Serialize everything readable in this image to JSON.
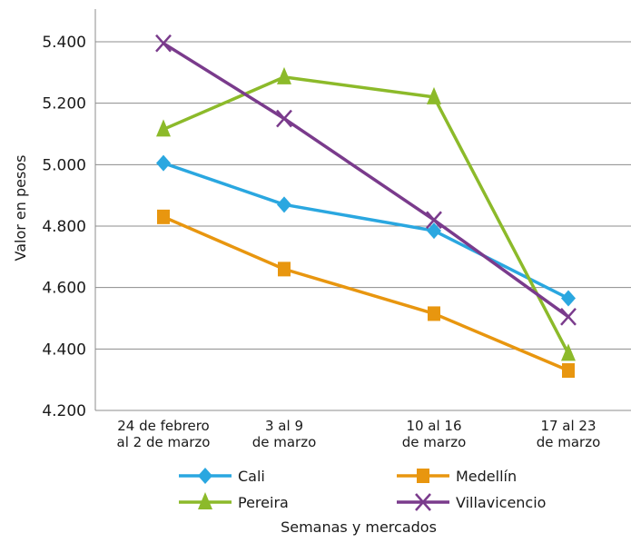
{
  "chart_data": {
    "type": "line",
    "categories": [
      [
        "24 de febrero",
        "al 2 de marzo"
      ],
      [
        "3 al 9",
        "de marzo"
      ],
      [
        "10 al 16",
        "de marzo"
      ],
      [
        "17 al 23",
        "de marzo"
      ]
    ],
    "ylabel": "Valor en pesos",
    "xlabel": "Semanas y mercados",
    "ylim": [
      4200,
      5400
    ],
    "yticks": [
      4200,
      4400,
      4600,
      4800,
      5000,
      5200,
      5400
    ],
    "ytick_labels": [
      "4.200",
      "4.400",
      "4.600",
      "4.800",
      "5.000",
      "5.200",
      "5.400"
    ],
    "grid": true,
    "legend_position": "bottom",
    "series": [
      {
        "name": "Cali",
        "color": "#2aa7e0",
        "marker": "diamond",
        "values": [
          5005,
          4870,
          4785,
          4565
        ]
      },
      {
        "name": "Medellín",
        "color": "#e8960f",
        "marker": "square",
        "values": [
          4830,
          4660,
          4515,
          4330
        ]
      },
      {
        "name": "Pereira",
        "color": "#8cba2a",
        "marker": "triangle",
        "values": [
          5115,
          5285,
          5220,
          4385
        ]
      },
      {
        "name": "Villavicencio",
        "color": "#7a3b8c",
        "marker": "x",
        "values": [
          5395,
          5150,
          4820,
          4505
        ]
      }
    ]
  }
}
